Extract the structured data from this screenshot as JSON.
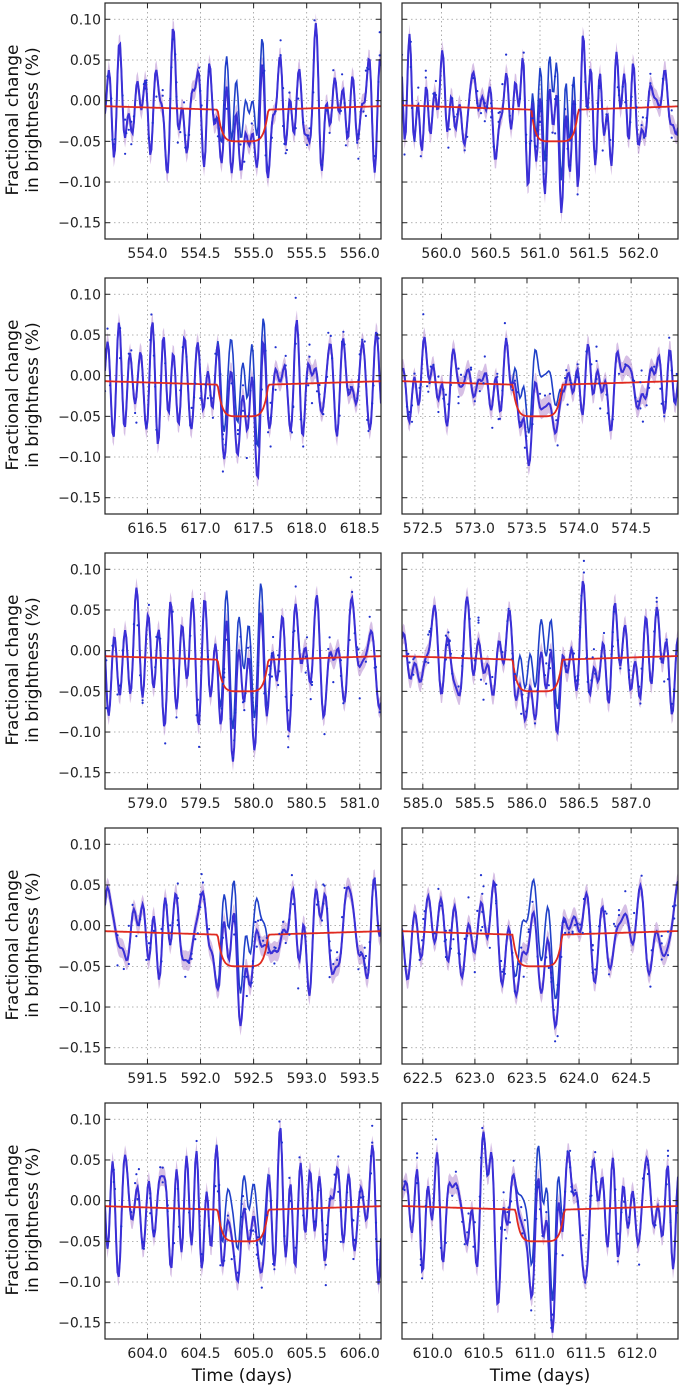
{
  "figure": {
    "ylabel_line1": "Fractional change",
    "ylabel_line2": "in brightness (%)",
    "xlabel": "Time (days)"
  },
  "colors": {
    "data_points": "#2030d0",
    "gp_mean": "#3b2fd6",
    "gp_band": "#b58ad0",
    "model_curve": "#2040c8",
    "transit_fit": "#e02a1f"
  },
  "chart_data": [
    {
      "type": "line",
      "panel": "row1-left",
      "xlim": [
        553.6,
        556.2
      ],
      "ylim": [
        -0.17,
        0.12
      ],
      "xticks": [
        554.0,
        554.5,
        555.0,
        555.5,
        556.0
      ],
      "xtick_labels": [
        "554.0",
        "554.5",
        "555.0",
        "555.5",
        "556.0"
      ],
      "yticks": [
        -0.15,
        -0.1,
        -0.05,
        0.0,
        0.05,
        0.1
      ],
      "ytick_labels": [
        "−0.15",
        "−0.10",
        "−0.05",
        "0.00",
        "0.05",
        "0.10"
      ],
      "transit": {
        "t0": 554.9,
        "half_width": 0.24,
        "depth": 0.05,
        "step": 0.01,
        "trend": 0.012
      },
      "seed": 11,
      "series": [
        "data points",
        "GP mean",
        "GP 1σ band",
        "model without transit",
        "transit model"
      ]
    },
    {
      "type": "line",
      "panel": "row1-right",
      "xlim": [
        559.6,
        562.4
      ],
      "ylim": [
        -0.17,
        0.12
      ],
      "xticks": [
        560.0,
        560.5,
        561.0,
        561.5,
        562.0
      ],
      "xtick_labels": [
        "560.0",
        "560.5",
        "561.0",
        "561.5",
        "562.0"
      ],
      "yticks": [
        -0.15,
        -0.1,
        -0.05,
        0.0,
        0.05,
        0.1
      ],
      "ytick_labels": [
        "",
        "",
        "",
        "",
        "",
        ""
      ],
      "transit": {
        "t0": 561.15,
        "half_width": 0.24,
        "depth": 0.05,
        "step": 0.01,
        "trend": 0.012
      },
      "seed": 23,
      "series": [
        "data points",
        "GP mean",
        "GP 1σ band",
        "model without transit",
        "transit model"
      ]
    },
    {
      "type": "line",
      "panel": "row2-left",
      "xlim": [
        616.1,
        618.7
      ],
      "ylim": [
        -0.17,
        0.12
      ],
      "xticks": [
        616.5,
        617.0,
        617.5,
        618.0,
        618.5
      ],
      "xtick_labels": [
        "616.5",
        "617.0",
        "617.5",
        "618.0",
        "618.5"
      ],
      "yticks": [
        -0.15,
        -0.1,
        -0.05,
        0.0,
        0.05,
        0.1
      ],
      "ytick_labels": [
        "−0.15",
        "−0.10",
        "−0.05",
        "0.00",
        "0.05",
        "0.10"
      ],
      "transit": {
        "t0": 617.4,
        "half_width": 0.24,
        "depth": 0.05,
        "step": 0.01,
        "trend": 0.012
      },
      "seed": 37,
      "series": [
        "data points",
        "GP mean",
        "GP 1σ band",
        "model without transit",
        "transit model"
      ]
    },
    {
      "type": "line",
      "panel": "row2-right",
      "xlim": [
        572.3,
        574.95
      ],
      "ylim": [
        -0.17,
        0.12
      ],
      "xticks": [
        572.5,
        573.0,
        573.5,
        574.0,
        574.5
      ],
      "xtick_labels": [
        "572.5",
        "573.0",
        "573.5",
        "574.0",
        "574.5"
      ],
      "yticks": [
        -0.15,
        -0.1,
        -0.05,
        0.0,
        0.05,
        0.1
      ],
      "ytick_labels": [
        "",
        "",
        "",
        "",
        "",
        ""
      ],
      "transit": {
        "t0": 573.6,
        "half_width": 0.24,
        "depth": 0.05,
        "step": 0.01,
        "trend": 0.012
      },
      "seed": 41,
      "series": [
        "data points",
        "GP mean",
        "GP 1σ band",
        "model without transit",
        "transit model"
      ]
    },
    {
      "type": "line",
      "panel": "row3-left",
      "xlim": [
        578.6,
        581.2
      ],
      "ylim": [
        -0.17,
        0.12
      ],
      "xticks": [
        579.0,
        579.5,
        580.0,
        580.5,
        581.0
      ],
      "xtick_labels": [
        "579.0",
        "579.5",
        "580.0",
        "580.5",
        "581.0"
      ],
      "yticks": [
        -0.15,
        -0.1,
        -0.05,
        0.0,
        0.05,
        0.1
      ],
      "ytick_labels": [
        "−0.15",
        "−0.10",
        "−0.05",
        "0.00",
        "0.05",
        "0.10"
      ],
      "transit": {
        "t0": 579.9,
        "half_width": 0.24,
        "depth": 0.05,
        "step": 0.01,
        "trend": 0.012
      },
      "seed": 53,
      "series": [
        "data points",
        "GP mean",
        "GP 1σ band",
        "model without transit",
        "transit model"
      ]
    },
    {
      "type": "line",
      "panel": "row3-right",
      "xlim": [
        584.8,
        587.45
      ],
      "ylim": [
        -0.17,
        0.12
      ],
      "xticks": [
        585.0,
        585.5,
        586.0,
        586.5,
        587.0
      ],
      "xtick_labels": [
        "585.0",
        "585.5",
        "586.0",
        "586.5",
        "587.0"
      ],
      "yticks": [
        -0.15,
        -0.1,
        -0.05,
        0.0,
        0.05,
        0.1
      ],
      "ytick_labels": [
        "",
        "",
        "",
        "",
        "",
        ""
      ],
      "transit": {
        "t0": 586.1,
        "half_width": 0.24,
        "depth": 0.05,
        "step": 0.01,
        "trend": 0.012
      },
      "seed": 67,
      "series": [
        "data points",
        "GP mean",
        "GP 1σ band",
        "model without transit",
        "transit model"
      ]
    },
    {
      "type": "line",
      "panel": "row4-left",
      "xlim": [
        591.1,
        593.7
      ],
      "ylim": [
        -0.17,
        0.12
      ],
      "xticks": [
        591.5,
        592.0,
        592.5,
        593.0,
        593.5
      ],
      "xtick_labels": [
        "591.5",
        "592.0",
        "592.5",
        "593.0",
        "593.5"
      ],
      "yticks": [
        -0.15,
        -0.1,
        -0.05,
        0.0,
        0.05,
        0.1
      ],
      "ytick_labels": [
        "−0.15",
        "−0.10",
        "−0.05",
        "0.00",
        "0.05",
        "0.10"
      ],
      "transit": {
        "t0": 592.4,
        "half_width": 0.24,
        "depth": 0.05,
        "step": 0.01,
        "trend": 0.012
      },
      "seed": 71,
      "series": [
        "data points",
        "GP mean",
        "GP 1σ band",
        "model without transit",
        "transit model"
      ]
    },
    {
      "type": "line",
      "panel": "row4-right",
      "xlim": [
        622.3,
        624.95
      ],
      "ylim": [
        -0.17,
        0.12
      ],
      "xticks": [
        622.5,
        623.0,
        623.5,
        624.0,
        624.5
      ],
      "xtick_labels": [
        "622.5",
        "623.0",
        "623.5",
        "624.0",
        "624.5"
      ],
      "yticks": [
        -0.15,
        -0.1,
        -0.05,
        0.0,
        0.05,
        0.1
      ],
      "ytick_labels": [
        "",
        "",
        "",
        "",
        "",
        ""
      ],
      "transit": {
        "t0": 623.6,
        "half_width": 0.24,
        "depth": 0.05,
        "step": 0.01,
        "trend": 0.012
      },
      "seed": 83,
      "series": [
        "data points",
        "GP mean",
        "GP 1σ band",
        "model without transit",
        "transit model"
      ]
    },
    {
      "type": "line",
      "panel": "row5-left",
      "xlim": [
        603.6,
        606.2
      ],
      "ylim": [
        -0.17,
        0.12
      ],
      "xticks": [
        604.0,
        604.5,
        605.0,
        605.5,
        606.0
      ],
      "xtick_labels": [
        "604.0",
        "604.5",
        "605.0",
        "605.5",
        "606.0"
      ],
      "yticks": [
        -0.15,
        -0.1,
        -0.05,
        0.0,
        0.05,
        0.1
      ],
      "ytick_labels": [
        "−0.15",
        "−0.10",
        "−0.05",
        "0.00",
        "0.05",
        "0.10"
      ],
      "transit": {
        "t0": 604.9,
        "half_width": 0.24,
        "depth": 0.05,
        "step": 0.01,
        "trend": 0.012
      },
      "seed": 97,
      "series": [
        "data points",
        "GP mean",
        "GP 1σ band",
        "model without transit",
        "transit model"
      ]
    },
    {
      "type": "line",
      "panel": "row5-right",
      "xlim": [
        609.7,
        612.4
      ],
      "ylim": [
        -0.17,
        0.12
      ],
      "xticks": [
        610.0,
        610.5,
        611.0,
        611.5,
        612.0
      ],
      "xtick_labels": [
        "610.0",
        "610.5",
        "611.0",
        "611.5",
        "612.0"
      ],
      "yticks": [
        -0.15,
        -0.1,
        -0.05,
        0.0,
        0.05,
        0.1
      ],
      "ytick_labels": [
        "",
        "",
        "",
        "",
        "",
        ""
      ],
      "transit": {
        "t0": 611.05,
        "half_width": 0.24,
        "depth": 0.05,
        "step": 0.01,
        "trend": 0.012
      },
      "seed": 101,
      "series": [
        "data points",
        "GP mean",
        "GP 1σ band",
        "model without transit",
        "transit model"
      ]
    }
  ]
}
